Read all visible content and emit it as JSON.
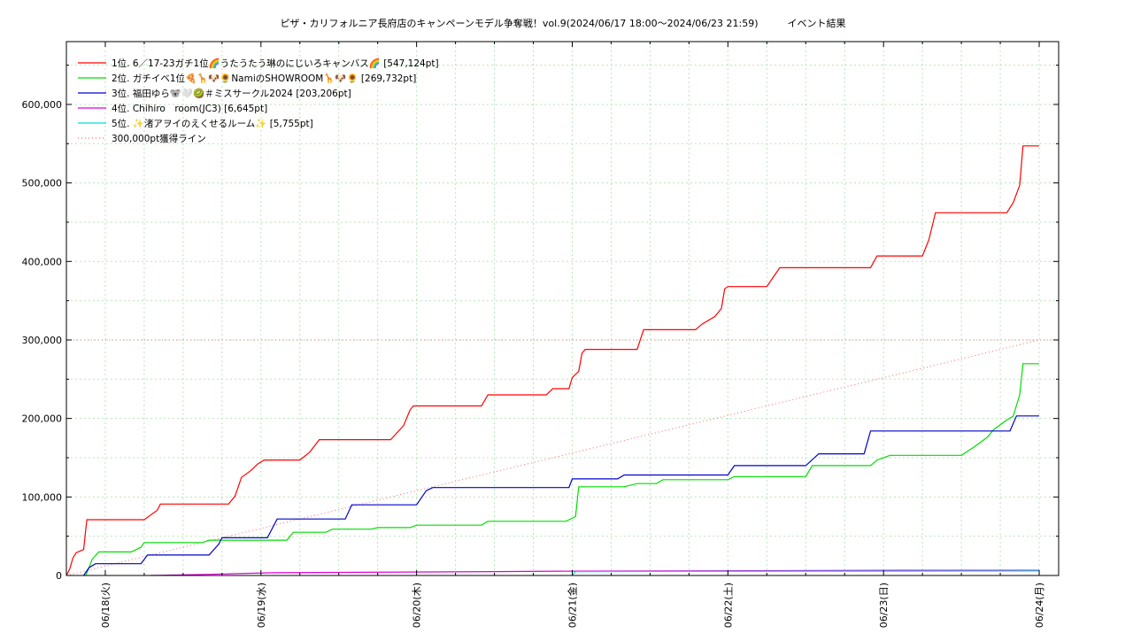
{
  "chart_data": {
    "type": "line",
    "title": "ピザ・カリフォルニア長府店のキャンペーンモデル争奪戦！vol.9(2024/06/17 18:00～2024/06/23 21:59)　　　イベント結果",
    "xlabel": "",
    "ylabel": "",
    "x_ticks": [
      "06/18(火)",
      "06/19(水)",
      "06/20(木)",
      "06/21(金)",
      "06/22(土)",
      "06/23(日)",
      "06/24(月)"
    ],
    "xlim": [
      "2024/06/17 18:00",
      "2024/06/24 03:00"
    ],
    "ylim": [
      0,
      680000
    ],
    "y_ticks": [
      "0",
      "100,000",
      "200,000",
      "300,000",
      "400,000",
      "500,000",
      "600,000"
    ],
    "grid": true,
    "legend_position": "top-left",
    "series": [
      {
        "name": "1位. 6／17-23ガチ1位🌈うたうたう琳のにじいろキャンバス🌈 [547,124pt]",
        "color": "#ff0000",
        "points": [
          [
            "2024/06/17 18:00",
            0
          ],
          [
            "2024/06/17 18:30",
            8000
          ],
          [
            "2024/06/17 19:00",
            22000
          ],
          [
            "2024/06/17 19:30",
            29000
          ],
          [
            "2024/06/17 20:40",
            33000
          ],
          [
            "2024/06/17 21:00",
            60000
          ],
          [
            "2024/06/17 21:10",
            71000
          ],
          [
            "2024/06/18 06:00",
            71000
          ],
          [
            "2024/06/18 07:00",
            77000
          ],
          [
            "2024/06/18 08:00",
            83000
          ],
          [
            "2024/06/18 08:30",
            91000
          ],
          [
            "2024/06/18 19:00",
            91000
          ],
          [
            "2024/06/18 20:00",
            101000
          ],
          [
            "2024/06/18 21:00",
            125000
          ],
          [
            "2024/06/18 22:30",
            134000
          ],
          [
            "2024/06/18 23:30",
            142000
          ],
          [
            "2024/06/19 00:30",
            147000
          ],
          [
            "2024/06/19 06:00",
            147000
          ],
          [
            "2024/06/19 07:30",
            157000
          ],
          [
            "2024/06/19 09:00",
            173000
          ],
          [
            "2024/06/19 20:00",
            173000
          ],
          [
            "2024/06/19 21:00",
            182000
          ],
          [
            "2024/06/19 22:00",
            191000
          ],
          [
            "2024/06/19 23:00",
            211000
          ],
          [
            "2024/06/19 23:30",
            216000
          ],
          [
            "2024/06/20 10:00",
            216000
          ],
          [
            "2024/06/20 11:00",
            230000
          ],
          [
            "2024/06/20 20:00",
            230000
          ],
          [
            "2024/06/20 21:00",
            238000
          ],
          [
            "2024/06/20 23:30",
            238000
          ],
          [
            "2024/06/21 00:00",
            252000
          ],
          [
            "2024/06/21 01:00",
            260000
          ],
          [
            "2024/06/21 01:30",
            283000
          ],
          [
            "2024/06/21 02:00",
            288000
          ],
          [
            "2024/06/21 10:00",
            288000
          ],
          [
            "2024/06/21 11:00",
            313000
          ],
          [
            "2024/06/21 19:00",
            313000
          ],
          [
            "2024/06/21 20:00",
            320000
          ],
          [
            "2024/06/21 22:00",
            330000
          ],
          [
            "2024/06/21 23:00",
            340000
          ],
          [
            "2024/06/21 23:30",
            365000
          ],
          [
            "2024/06/22 00:00",
            368000
          ],
          [
            "2024/06/22 06:00",
            368000
          ],
          [
            "2024/06/22 07:00",
            380000
          ],
          [
            "2024/06/22 08:00",
            392000
          ],
          [
            "2024/06/22 22:00",
            392000
          ],
          [
            "2024/06/22 23:00",
            407000
          ],
          [
            "2024/06/23 06:00",
            407000
          ],
          [
            "2024/06/23 07:00",
            428000
          ],
          [
            "2024/06/23 08:00",
            462000
          ],
          [
            "2024/06/23 19:00",
            462000
          ],
          [
            "2024/06/23 20:00",
            475000
          ],
          [
            "2024/06/23 21:00",
            497000
          ],
          [
            "2024/06/23 21:30",
            547124
          ],
          [
            "2024/06/24 00:00",
            547124
          ]
        ]
      },
      {
        "name": "2位. ガチイベ1位🍕🦒🐶🌻NamiのSHOWROOM🦒🐶🌻 [269,732pt]",
        "color": "#00dd00",
        "points": [
          [
            "2024/06/17 21:00",
            0
          ],
          [
            "2024/06/17 21:30",
            10000
          ],
          [
            "2024/06/17 22:00",
            21000
          ],
          [
            "2024/06/17 23:00",
            30000
          ],
          [
            "2024/06/18 04:00",
            30000
          ],
          [
            "2024/06/18 05:30",
            36000
          ],
          [
            "2024/06/18 06:00",
            42000
          ],
          [
            "2024/06/18 15:00",
            42000
          ],
          [
            "2024/06/18 16:00",
            45000
          ],
          [
            "2024/06/19 04:00",
            45000
          ],
          [
            "2024/06/19 05:00",
            55000
          ],
          [
            "2024/06/19 10:00",
            55000
          ],
          [
            "2024/06/19 11:00",
            59000
          ],
          [
            "2024/06/19 17:00",
            59000
          ],
          [
            "2024/06/19 18:00",
            61000
          ],
          [
            "2024/06/19 23:00",
            61000
          ],
          [
            "2024/06/20 00:00",
            64000
          ],
          [
            "2024/06/20 10:00",
            64000
          ],
          [
            "2024/06/20 11:00",
            69000
          ],
          [
            "2024/06/20 23:00",
            69000
          ],
          [
            "2024/06/21 00:30",
            75000
          ],
          [
            "2024/06/21 01:00",
            113000
          ],
          [
            "2024/06/21 08:00",
            113000
          ],
          [
            "2024/06/21 10:00",
            117000
          ],
          [
            "2024/06/21 13:00",
            117000
          ],
          [
            "2024/06/21 14:00",
            122000
          ],
          [
            "2024/06/22 00:00",
            122000
          ],
          [
            "2024/06/22 01:00",
            126000
          ],
          [
            "2024/06/22 12:00",
            126000
          ],
          [
            "2024/06/22 13:00",
            140000
          ],
          [
            "2024/06/22 22:00",
            140000
          ],
          [
            "2024/06/22 23:00",
            147000
          ],
          [
            "2024/06/23 01:00",
            153000
          ],
          [
            "2024/06/23 12:00",
            153000
          ],
          [
            "2024/06/23 14:00",
            164000
          ],
          [
            "2024/06/23 16:00",
            176000
          ],
          [
            "2024/06/23 17:00",
            186000
          ],
          [
            "2024/06/23 19:00",
            198000
          ],
          [
            "2024/06/23 20:00",
            203000
          ],
          [
            "2024/06/23 21:00",
            230000
          ],
          [
            "2024/06/23 21:30",
            269732
          ],
          [
            "2024/06/24 00:00",
            269732
          ]
        ]
      },
      {
        "name": "3位. 福田ゆら🐨🤍🥝＃ミスサークル2024 [203,206pt]",
        "color": "#0000cc",
        "points": [
          [
            "2024/06/17 20:40",
            0
          ],
          [
            "2024/06/17 21:30",
            10000
          ],
          [
            "2024/06/17 22:30",
            15000
          ],
          [
            "2024/06/18 05:30",
            15000
          ],
          [
            "2024/06/18 06:30",
            26000
          ],
          [
            "2024/06/18 16:00",
            26000
          ],
          [
            "2024/06/18 17:30",
            40000
          ],
          [
            "2024/06/18 18:00",
            48000
          ],
          [
            "2024/06/19 01:00",
            48000
          ],
          [
            "2024/06/19 02:30",
            72000
          ],
          [
            "2024/06/19 13:00",
            72000
          ],
          [
            "2024/06/19 14:00",
            90000
          ],
          [
            "2024/06/20 00:00",
            90000
          ],
          [
            "2024/06/20 01:30",
            108000
          ],
          [
            "2024/06/20 02:30",
            112000
          ],
          [
            "2024/06/20 23:30",
            112000
          ],
          [
            "2024/06/21 00:00",
            123000
          ],
          [
            "2024/06/21 07:00",
            123000
          ],
          [
            "2024/06/21 08:00",
            128000
          ],
          [
            "2024/06/22 00:00",
            128000
          ],
          [
            "2024/06/22 01:00",
            140000
          ],
          [
            "2024/06/22 12:00",
            140000
          ],
          [
            "2024/06/22 14:00",
            155000
          ],
          [
            "2024/06/22 21:00",
            155000
          ],
          [
            "2024/06/22 22:00",
            184000
          ],
          [
            "2024/06/23 19:30",
            184000
          ],
          [
            "2024/06/23 20:30",
            203206
          ],
          [
            "2024/06/24 00:00",
            203206
          ]
        ]
      },
      {
        "name": "4位. Chihiro　room(JC3) [6,645pt]",
        "color": "#dd00dd",
        "points": [
          [
            "2024/06/18 07:00",
            0
          ],
          [
            "2024/06/18 16:00",
            1500
          ],
          [
            "2024/06/19 02:00",
            3500
          ],
          [
            "2024/06/20 12:00",
            5000
          ],
          [
            "2024/06/21 00:00",
            5500
          ],
          [
            "2024/06/23 05:00",
            6645
          ],
          [
            "2024/06/24 00:00",
            6645
          ]
        ]
      },
      {
        "name": "5位. ✨渚アヲイのえくせるルーム✨ [5,755pt]",
        "color": "#00dddd",
        "points": [
          [
            "2024/06/21 00:00",
            0
          ],
          [
            "2024/06/21 00:30",
            5000
          ],
          [
            "2024/06/24 00:00",
            5755
          ]
        ]
      }
    ],
    "reference_line": {
      "name": "300,000pt獲得ライン",
      "color": "#ff6666",
      "points": [
        [
          "2024/06/17 18:00",
          0
        ],
        [
          "2024/06/24 00:00",
          300000
        ]
      ]
    },
    "colors": {
      "grid": "#b8e6b8",
      "frame": "#000000",
      "text": "#000000"
    }
  }
}
